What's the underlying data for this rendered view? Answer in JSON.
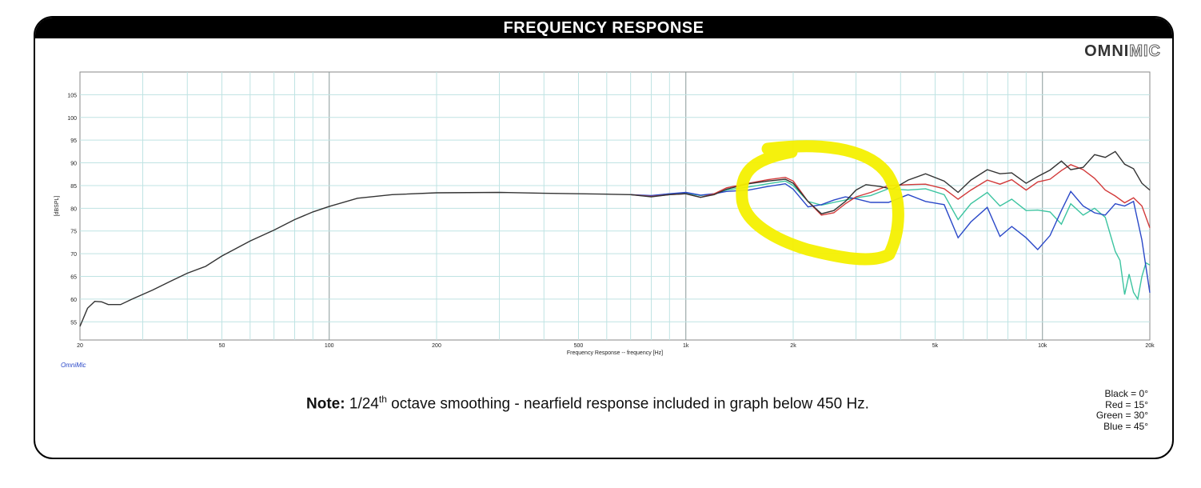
{
  "header": {
    "title": "FREQUENCY RESPONSE"
  },
  "logo": {
    "bold": "OMNI",
    "outline": "MIC"
  },
  "watermark": "OmniMic",
  "note": {
    "label": "Note:",
    "text_a": "1/24",
    "sup": "th",
    "text_b": " octave smoothing - nearfield response included in graph below 450 Hz."
  },
  "legend": [
    "Black = 0°",
    "Red = 15°",
    "Green = 30°",
    "Blue = 45°"
  ],
  "colors": {
    "black": "#333333",
    "red": "#d23a3a",
    "green": "#3cc4a0",
    "blue": "#2a48c8",
    "grid": "#bfe3e3",
    "grid_major": "#8a9a9a",
    "highlight": "#f4f000"
  },
  "chart_data": {
    "type": "line",
    "xscale": "log",
    "xlabel": "Frequency Response -- frequency [Hz]",
    "ylabel": "[dBSPL]",
    "xlim": [
      20,
      20000
    ],
    "ylim": [
      51,
      110
    ],
    "x_tick_labels": [
      {
        "v": 20,
        "t": "20"
      },
      {
        "v": 50,
        "t": "50"
      },
      {
        "v": 100,
        "t": "100"
      },
      {
        "v": 200,
        "t": "200"
      },
      {
        "v": 500,
        "t": "500"
      },
      {
        "v": 1000,
        "t": "1k"
      },
      {
        "v": 2000,
        "t": "2k"
      },
      {
        "v": 5000,
        "t": "5k"
      },
      {
        "v": 10000,
        "t": "10k"
      },
      {
        "v": 20000,
        "t": "20k"
      }
    ],
    "y_ticks": [
      55,
      60,
      65,
      70,
      75,
      80,
      85,
      90,
      95,
      100,
      105
    ],
    "grid": true,
    "shared": [
      [
        20,
        54
      ],
      [
        21,
        58
      ],
      [
        22,
        59.5
      ],
      [
        23,
        59.4
      ],
      [
        24,
        58.8
      ],
      [
        26,
        58.8
      ],
      [
        28,
        60
      ],
      [
        32,
        62
      ],
      [
        36,
        64
      ],
      [
        40,
        65.7
      ],
      [
        45,
        67.2
      ],
      [
        50,
        69.5
      ],
      [
        55,
        71.2
      ],
      [
        60,
        72.8
      ],
      [
        70,
        75.2
      ],
      [
        80,
        77.5
      ],
      [
        90,
        79.2
      ],
      [
        100,
        80.4
      ],
      [
        120,
        82.2
      ],
      [
        150,
        83
      ],
      [
        200,
        83.4
      ],
      [
        300,
        83.5
      ],
      [
        400,
        83.3
      ],
      [
        500,
        83.2
      ],
      [
        600,
        83.1
      ],
      [
        700,
        83
      ]
    ],
    "series": [
      {
        "name": "Black = 0°",
        "color": "#333333",
        "points": [
          [
            700,
            83
          ],
          [
            800,
            82.5
          ],
          [
            900,
            83
          ],
          [
            1000,
            83.2
          ],
          [
            1100,
            82.4
          ],
          [
            1200,
            83
          ],
          [
            1300,
            84.2
          ],
          [
            1500,
            85.4
          ],
          [
            1700,
            86
          ],
          [
            1900,
            86.4
          ],
          [
            2000,
            85.5
          ],
          [
            2200,
            81.5
          ],
          [
            2400,
            78.8
          ],
          [
            2600,
            79.5
          ],
          [
            2800,
            81.5
          ],
          [
            3000,
            84
          ],
          [
            3200,
            85.2
          ],
          [
            3500,
            84.8
          ],
          [
            3800,
            84.2
          ],
          [
            4200,
            86.2
          ],
          [
            4700,
            87.6
          ],
          [
            5300,
            86
          ],
          [
            5800,
            83.5
          ],
          [
            6300,
            86.2
          ],
          [
            7000,
            88.5
          ],
          [
            7600,
            87.6
          ],
          [
            8200,
            87.8
          ],
          [
            9000,
            85.5
          ],
          [
            9700,
            87
          ],
          [
            10500,
            88.4
          ],
          [
            11300,
            90.4
          ],
          [
            12000,
            88.5
          ],
          [
            13000,
            89
          ],
          [
            14000,
            91.8
          ],
          [
            15000,
            91.2
          ],
          [
            16000,
            92.5
          ],
          [
            17000,
            89.7
          ],
          [
            18000,
            88.7
          ],
          [
            19000,
            85.5
          ],
          [
            20000,
            84
          ]
        ]
      },
      {
        "name": "Red = 15°",
        "color": "#d23a3a",
        "points": [
          [
            700,
            83
          ],
          [
            800,
            82.6
          ],
          [
            900,
            83
          ],
          [
            1000,
            83.2
          ],
          [
            1100,
            82.4
          ],
          [
            1200,
            83.2
          ],
          [
            1300,
            84.5
          ],
          [
            1500,
            85.5
          ],
          [
            1700,
            86.3
          ],
          [
            1900,
            86.8
          ],
          [
            2000,
            86
          ],
          [
            2200,
            81.5
          ],
          [
            2400,
            78.5
          ],
          [
            2600,
            79
          ],
          [
            2800,
            81
          ],
          [
            3000,
            82.5
          ],
          [
            3300,
            83.5
          ],
          [
            3700,
            85
          ],
          [
            4200,
            85.2
          ],
          [
            4700,
            85.3
          ],
          [
            5300,
            84.3
          ],
          [
            5800,
            82
          ],
          [
            6300,
            84
          ],
          [
            7000,
            86.2
          ],
          [
            7600,
            85.3
          ],
          [
            8200,
            86.3
          ],
          [
            9000,
            84
          ],
          [
            9700,
            85.8
          ],
          [
            10500,
            86.4
          ],
          [
            11300,
            88.3
          ],
          [
            12000,
            89.6
          ],
          [
            13000,
            88.5
          ],
          [
            14000,
            86.6
          ],
          [
            15000,
            84
          ],
          [
            16000,
            82.7
          ],
          [
            17000,
            81.2
          ],
          [
            18000,
            82.3
          ],
          [
            19000,
            80.5
          ],
          [
            20000,
            75.7
          ]
        ]
      },
      {
        "name": "Green = 30°",
        "color": "#3cc4a0",
        "points": [
          [
            700,
            83
          ],
          [
            800,
            82.7
          ],
          [
            900,
            83.2
          ],
          [
            1000,
            83.3
          ],
          [
            1100,
            82.8
          ],
          [
            1200,
            83.2
          ],
          [
            1300,
            84
          ],
          [
            1500,
            84.7
          ],
          [
            1700,
            85.4
          ],
          [
            1900,
            86
          ],
          [
            2000,
            85
          ],
          [
            2200,
            81.5
          ],
          [
            2400,
            80.7
          ],
          [
            2600,
            81.3
          ],
          [
            2800,
            81.8
          ],
          [
            3000,
            82.3
          ],
          [
            3300,
            82.8
          ],
          [
            3700,
            84.3
          ],
          [
            4200,
            84
          ],
          [
            4700,
            84.3
          ],
          [
            5300,
            83
          ],
          [
            5800,
            77.5
          ],
          [
            6300,
            81
          ],
          [
            7000,
            83.5
          ],
          [
            7600,
            80.5
          ],
          [
            8200,
            82
          ],
          [
            9000,
            79.5
          ],
          [
            9700,
            79.6
          ],
          [
            10500,
            79.2
          ],
          [
            11300,
            76.5
          ],
          [
            12000,
            81
          ],
          [
            13000,
            78.5
          ],
          [
            14000,
            80
          ],
          [
            15000,
            78
          ],
          [
            16000,
            70.5
          ],
          [
            16500,
            68.5
          ],
          [
            17000,
            61
          ],
          [
            17500,
            65.5
          ],
          [
            18000,
            61.5
          ],
          [
            18500,
            60
          ],
          [
            19000,
            65
          ],
          [
            19500,
            68
          ],
          [
            20000,
            67.5
          ]
        ]
      },
      {
        "name": "Blue = 45°",
        "color": "#2a48c8",
        "points": [
          [
            700,
            83
          ],
          [
            800,
            82.8
          ],
          [
            900,
            83.2
          ],
          [
            1000,
            83.5
          ],
          [
            1100,
            82.9
          ],
          [
            1200,
            83.2
          ],
          [
            1300,
            83.7
          ],
          [
            1500,
            84
          ],
          [
            1700,
            84.8
          ],
          [
            1900,
            85.4
          ],
          [
            2000,
            84.2
          ],
          [
            2200,
            80.3
          ],
          [
            2400,
            80.8
          ],
          [
            2600,
            81.8
          ],
          [
            2800,
            82.5
          ],
          [
            3000,
            82.1
          ],
          [
            3300,
            81.3
          ],
          [
            3700,
            81.3
          ],
          [
            4200,
            83
          ],
          [
            4700,
            81.5
          ],
          [
            5300,
            80.8
          ],
          [
            5800,
            73.5
          ],
          [
            6300,
            77
          ],
          [
            7000,
            80.2
          ],
          [
            7600,
            73.8
          ],
          [
            8200,
            76
          ],
          [
            9000,
            73.5
          ],
          [
            9700,
            70.9
          ],
          [
            10500,
            74
          ],
          [
            11300,
            79.5
          ],
          [
            12000,
            83.7
          ],
          [
            13000,
            80.5
          ],
          [
            14000,
            79
          ],
          [
            15000,
            78.5
          ],
          [
            16000,
            81
          ],
          [
            17000,
            80.5
          ],
          [
            18000,
            81.5
          ],
          [
            19000,
            73
          ],
          [
            20000,
            61.4
          ]
        ]
      }
    ]
  }
}
